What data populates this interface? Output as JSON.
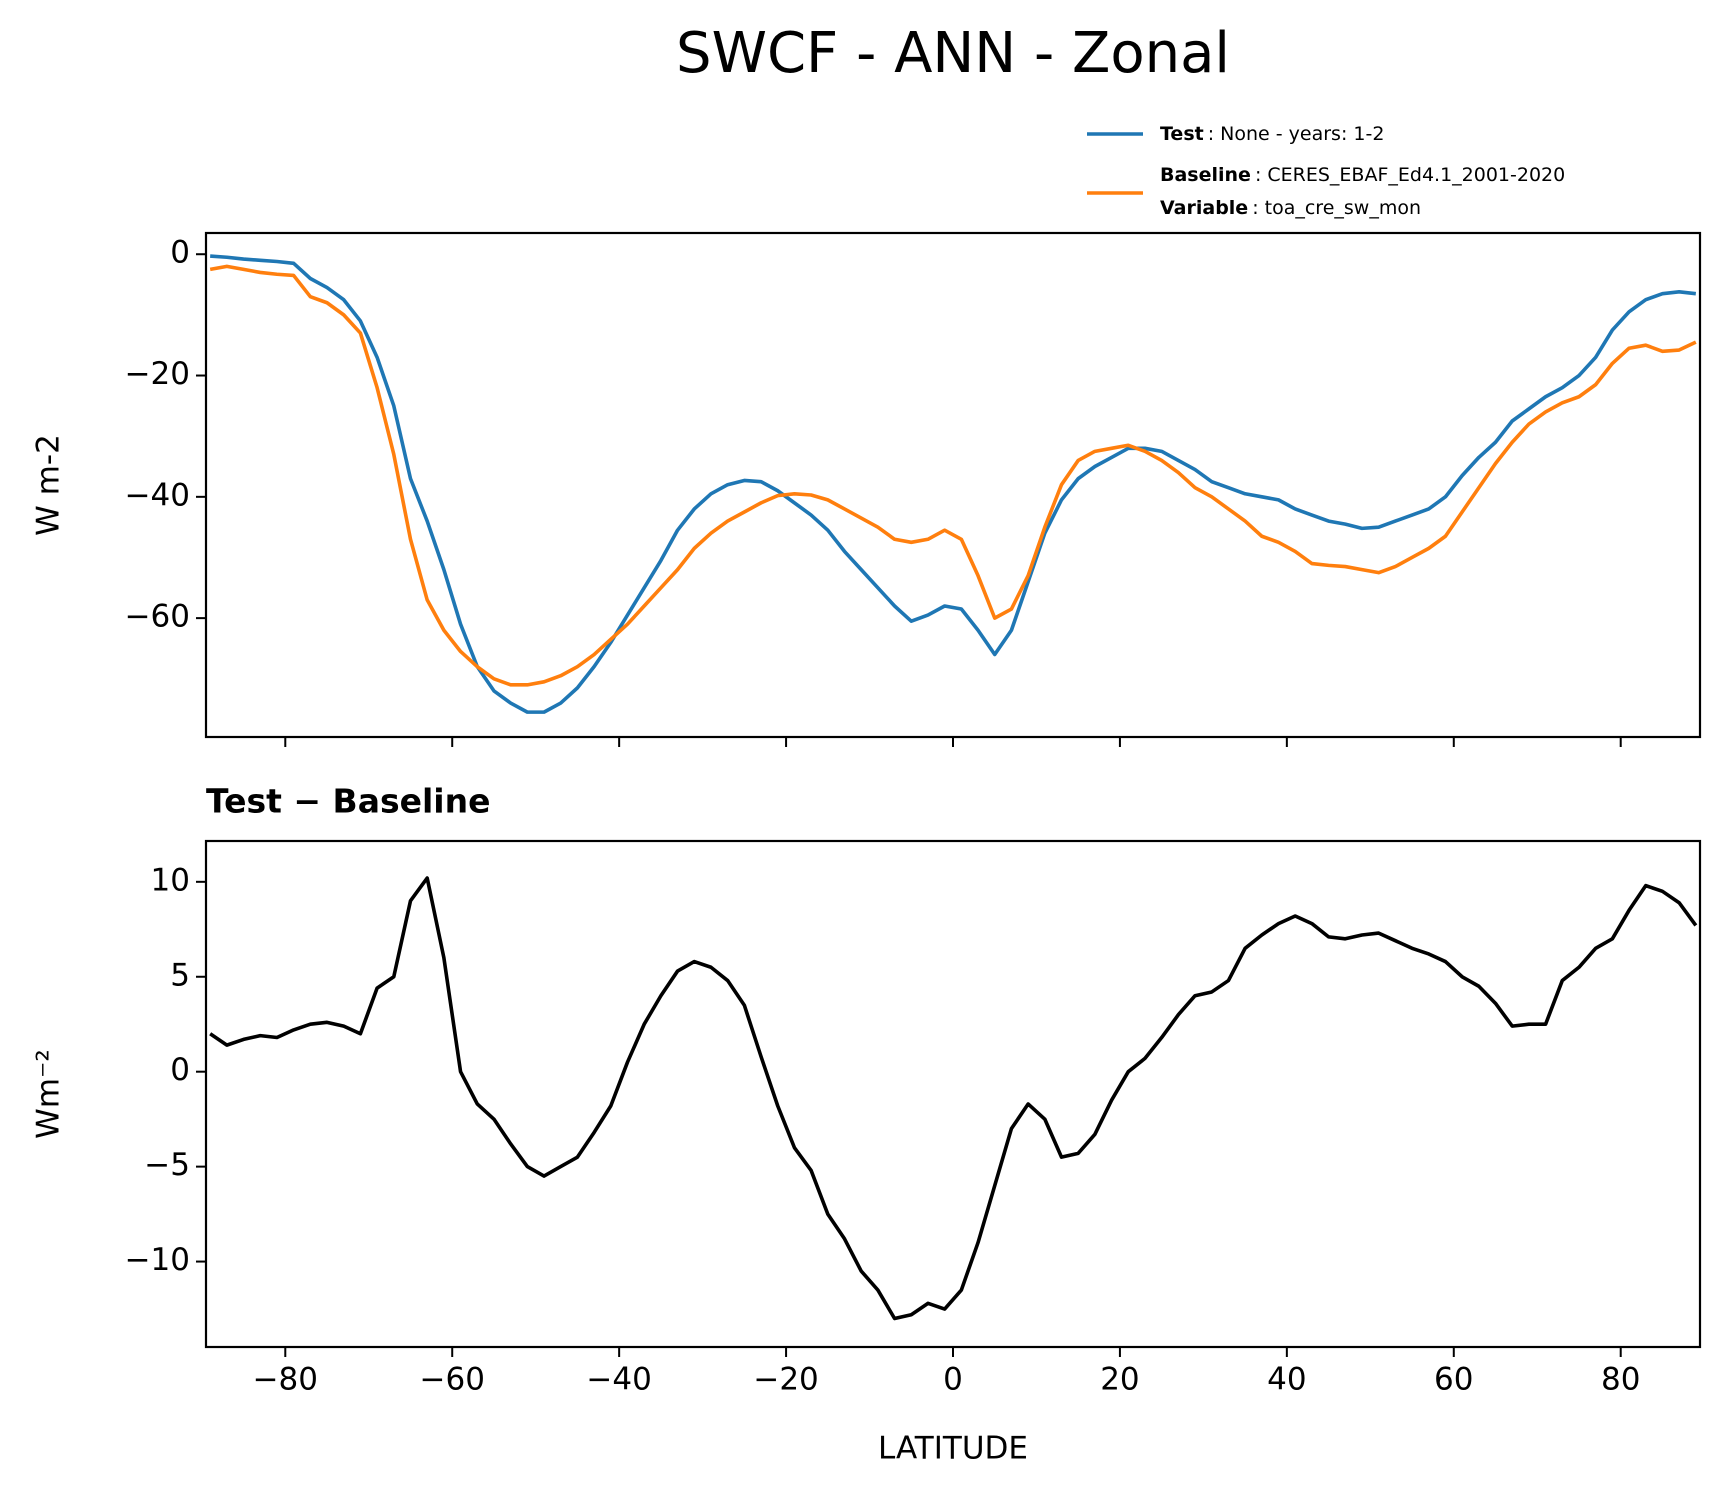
{
  "title": "SWCF - ANN - Zonal",
  "chart_data": [
    {
      "type": "line",
      "ylabel": "W m-2",
      "x": [
        -89,
        -87,
        -85,
        -83,
        -81,
        -79,
        -77,
        -75,
        -73,
        -71,
        -69,
        -67,
        -65,
        -63,
        -61,
        -59,
        -57,
        -55,
        -53,
        -51,
        -49,
        -47,
        -45,
        -43,
        -41,
        -39,
        -37,
        -35,
        -33,
        -31,
        -29,
        -27,
        -25,
        -23,
        -21,
        -19,
        -17,
        -15,
        -13,
        -11,
        -9,
        -7,
        -5,
        -3,
        -1,
        1,
        3,
        5,
        7,
        9,
        11,
        13,
        15,
        17,
        19,
        21,
        23,
        25,
        27,
        29,
        31,
        33,
        35,
        37,
        39,
        41,
        43,
        45,
        47,
        49,
        51,
        53,
        55,
        57,
        59,
        61,
        63,
        65,
        67,
        69,
        71,
        73,
        75,
        77,
        79,
        81,
        83,
        85,
        87,
        89
      ],
      "xlim": [
        -89.5,
        89.5
      ],
      "xticks": [
        {
          "value": -80,
          "label": "−80"
        },
        {
          "value": -60,
          "label": "−60"
        },
        {
          "value": -40,
          "label": "−40"
        },
        {
          "value": -20,
          "label": "−20"
        },
        0,
        20,
        40,
        60,
        80
      ],
      "xticklabels": false,
      "ylim": [
        -79.6,
        3.5
      ],
      "yticks": [
        {
          "value": -60,
          "label": "−60"
        },
        {
          "value": -40,
          "label": "−40"
        },
        {
          "value": -20,
          "label": "−20"
        },
        0
      ],
      "legend": "above right",
      "series": [
        {
          "name": "Test",
          "detail": ": None - years: 1-2",
          "color": "#1f77b4",
          "values": [
            -0.3,
            -0.5,
            -0.8,
            -1.0,
            -1.2,
            -1.5,
            -4,
            -5.5,
            -7.5,
            -11,
            -17,
            -25,
            -37,
            -44,
            -52,
            -61,
            -68,
            -72,
            -74,
            -75.5,
            -75.5,
            -74,
            -71.5,
            -68,
            -64,
            -59.5,
            -55,
            -50.5,
            -45.5,
            -42,
            -39.5,
            -38,
            -37.3,
            -37.5,
            -39,
            -41,
            -43,
            -45.5,
            -49,
            -52,
            -55,
            -58,
            -60.5,
            -59.5,
            -58,
            -58.5,
            -62,
            -66,
            -62,
            -54,
            -46,
            -40.5,
            -37,
            -35,
            -33.5,
            -32,
            -32,
            -32.5,
            -34,
            -35.5,
            -37.5,
            -38.5,
            -39.5,
            -40,
            -40.5,
            -42,
            -43,
            -44,
            -44.5,
            -45.2,
            -45,
            -44,
            -43,
            -42,
            -40,
            -36.5,
            -33.5,
            -31,
            -27.5,
            -25.5,
            -23.5,
            -22,
            -20,
            -17,
            -12.5,
            -9.5,
            -7.5,
            -6.5,
            -6.2,
            -6.5
          ]
        },
        {
          "name": "Baseline",
          "detail": ": CERES_EBAF_Ed4.1_2001-2020",
          "color": "#ff7f0e",
          "values": [
            -2.5,
            -2,
            -2.5,
            -3,
            -3.3,
            -3.5,
            -7,
            -8,
            -10,
            -13,
            -22,
            -33,
            -47,
            -57,
            -62,
            -65.5,
            -68,
            -70,
            -71,
            -71,
            -70.5,
            -69.5,
            -68,
            -66,
            -63.5,
            -61,
            -58,
            -55,
            -52,
            -48.5,
            -46,
            -44,
            -42.5,
            -41,
            -39.8,
            -39.5,
            -39.7,
            -40.5,
            -42,
            -43.5,
            -45,
            -47,
            -47.5,
            -47,
            -45.5,
            -47,
            -53,
            -60,
            -58.5,
            -53,
            -45,
            -38,
            -34,
            -32.5,
            -32,
            -31.5,
            -32.5,
            -34,
            -36,
            -38.5,
            -40,
            -42,
            -44,
            -46.5,
            -47.5,
            -49,
            -51,
            -51.3,
            -51.5,
            -52,
            -52.5,
            -51.5,
            -50,
            -48.5,
            -46.5,
            -42.5,
            -38.5,
            -34.5,
            -31,
            -28,
            -26,
            -24.5,
            -23.5,
            -21.5,
            -18,
            -15.5,
            -15,
            -16,
            -15.8,
            -14.5
          ]
        }
      ],
      "legend_extra": {
        "name": "Variable",
        "detail": ": toa_cre_sw_mon"
      }
    },
    {
      "type": "line",
      "title": "Test − Baseline",
      "xlabel": "LATITUDE",
      "ylabel": "Wm⁻²",
      "x": [
        -89,
        -87,
        -85,
        -83,
        -81,
        -79,
        -77,
        -75,
        -73,
        -71,
        -69,
        -67,
        -65,
        -63,
        -61,
        -59,
        -57,
        -55,
        -53,
        -51,
        -49,
        -47,
        -45,
        -43,
        -41,
        -39,
        -37,
        -35,
        -33,
        -31,
        -29,
        -27,
        -25,
        -23,
        -21,
        -19,
        -17,
        -15,
        -13,
        -11,
        -9,
        -7,
        -5,
        -3,
        -1,
        1,
        3,
        5,
        7,
        9,
        11,
        13,
        15,
        17,
        19,
        21,
        23,
        25,
        27,
        29,
        31,
        33,
        35,
        37,
        39,
        41,
        43,
        45,
        47,
        49,
        51,
        53,
        55,
        57,
        59,
        61,
        63,
        65,
        67,
        69,
        71,
        73,
        75,
        77,
        79,
        81,
        83,
        85,
        87,
        89
      ],
      "xlim": [
        -89.5,
        89.5
      ],
      "xticks": [
        {
          "value": -80,
          "label": "−80"
        },
        {
          "value": -60,
          "label": "−60"
        },
        {
          "value": -40,
          "label": "−40"
        },
        {
          "value": -20,
          "label": "−20"
        },
        0,
        20,
        40,
        60,
        80
      ],
      "xticklabels": true,
      "ylim": [
        -14.5,
        12.15
      ],
      "yticks": [
        {
          "value": -10,
          "label": "−10"
        },
        {
          "value": -5,
          "label": "−5"
        },
        0,
        5,
        10
      ],
      "series": [
        {
          "color": "#000000",
          "values": [
            2,
            1.4,
            1.7,
            1.9,
            1.8,
            2.2,
            2.5,
            2.6,
            2.4,
            2.0,
            4.4,
            5.0,
            9.0,
            10.2,
            6,
            0,
            -1.7,
            -2.5,
            -3.8,
            -5.0,
            -5.5,
            -5.0,
            -4.5,
            -3.2,
            -1.8,
            0.5,
            2.5,
            4.0,
            5.3,
            5.8,
            5.5,
            4.8,
            3.5,
            0.8,
            -1.8,
            -4,
            -5.2,
            -7.5,
            -8.8,
            -10.5,
            -11.5,
            -13,
            -12.8,
            -12.2,
            -12.5,
            -11.5,
            -9.0,
            -6.0,
            -3.0,
            -1.7,
            -2.5,
            -4.5,
            -4.3,
            -3.3,
            -1.5,
            0,
            0.7,
            1.8,
            3.0,
            4.0,
            4.2,
            4.8,
            6.5,
            7.2,
            7.8,
            8.2,
            7.8,
            7.1,
            7.0,
            7.2,
            7.3,
            6.9,
            6.5,
            6.2,
            5.8,
            5.0,
            4.5,
            3.6,
            2.4,
            2.5,
            2.5,
            4.8,
            5.5,
            6.5,
            7.0,
            8.5,
            9.8,
            9.5,
            8.9,
            7.7
          ]
        }
      ]
    }
  ]
}
